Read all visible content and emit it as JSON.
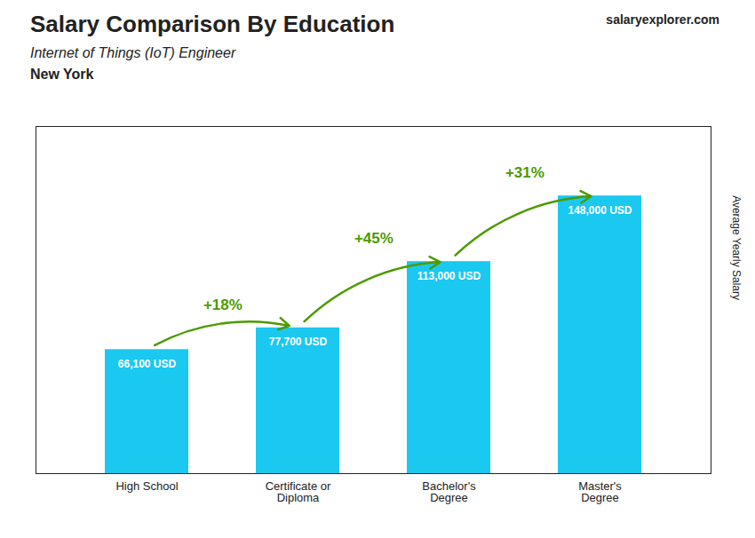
{
  "chart_data": {
    "type": "bar",
    "title": "Salary Comparison By Education",
    "subtitle": "Internet of Things (IoT) Engineer",
    "location": "New York",
    "brand": "salaryexplorer.com",
    "ylabel": "Average Yearly Salary",
    "categories": [
      "High School",
      "Certificate or\nDiploma",
      "Bachelor's\nDegree",
      "Master's\nDegree"
    ],
    "values": [
      66100,
      77700,
      113000,
      148000
    ],
    "value_labels": [
      "66,100 USD",
      "77,700 USD",
      "113,000 USD",
      "148,000 USD"
    ],
    "data_labels": true,
    "annotations": [
      "+18%",
      "+45%",
      "+31%"
    ],
    "color": "#1BC8F0",
    "ylim": [
      0,
      185000
    ],
    "tick_labels": "x"
  }
}
